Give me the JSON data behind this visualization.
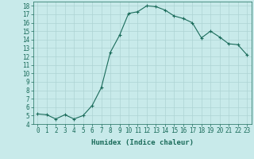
{
  "x": [
    0,
    1,
    2,
    3,
    4,
    5,
    6,
    7,
    8,
    9,
    10,
    11,
    12,
    13,
    14,
    15,
    16,
    17,
    18,
    19,
    20,
    21,
    22,
    23
  ],
  "y": [
    5.2,
    5.1,
    4.6,
    5.1,
    4.6,
    5.0,
    6.2,
    8.3,
    12.5,
    14.5,
    17.1,
    17.3,
    18.0,
    17.9,
    17.5,
    16.8,
    16.5,
    16.0,
    14.2,
    15.0,
    14.3,
    13.5,
    13.4,
    12.2
  ],
  "line_color": "#1a6b5a",
  "marker": "+",
  "marker_size": 3,
  "background_color": "#c8eaea",
  "grid_color": "#add4d4",
  "xlabel": "Humidex (Indice chaleur)",
  "xlim": [
    -0.5,
    23.5
  ],
  "ylim": [
    4,
    18.5
  ],
  "yticks": [
    4,
    5,
    6,
    7,
    8,
    9,
    10,
    11,
    12,
    13,
    14,
    15,
    16,
    17,
    18
  ],
  "xticks": [
    0,
    1,
    2,
    3,
    4,
    5,
    6,
    7,
    8,
    9,
    10,
    11,
    12,
    13,
    14,
    15,
    16,
    17,
    18,
    19,
    20,
    21,
    22,
    23
  ],
  "tick_color": "#1a6b5a",
  "label_fontsize": 6.5,
  "tick_fontsize": 5.5
}
